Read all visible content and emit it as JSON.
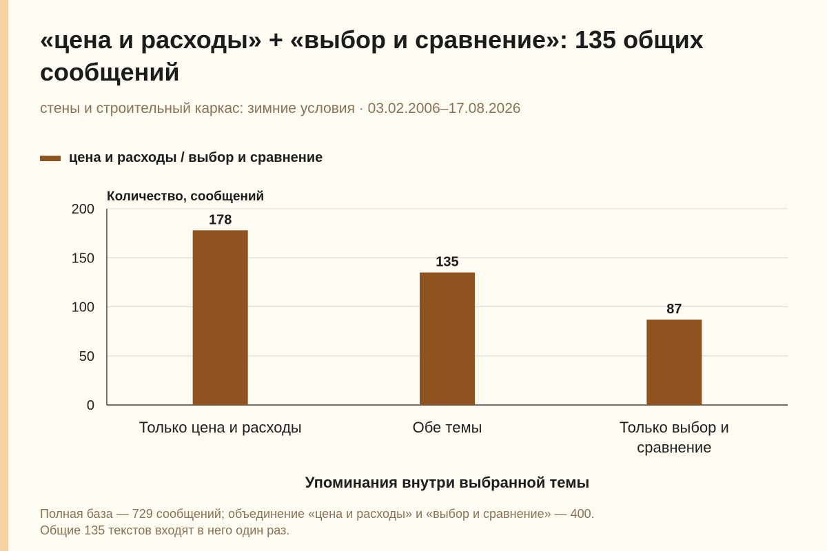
{
  "title": "«цена и расходы» + «выбор и сравнение»: 135 общих сообщений",
  "subtitle": "стены и строительный каркас: зимние условия · 03.02.2006–17.08.2026",
  "legend": {
    "label": "цена и расходы / выбор и сравнение",
    "color": "#8f5320"
  },
  "chart_data": {
    "type": "bar",
    "ylabel": "Количество, сообщений",
    "xlabel": "Упоминания внутри выбранной темы",
    "categories": [
      [
        "Только цена и расходы"
      ],
      [
        "Обе темы"
      ],
      [
        "Только выбор и",
        "сравнение"
      ]
    ],
    "values": [
      178,
      135,
      87
    ],
    "ylim": [
      0,
      200
    ],
    "yticks": [
      0,
      50,
      100,
      150,
      200
    ],
    "grid": true,
    "bar_color": "#8f5320"
  },
  "footnote": {
    "line1": "Полная база — 729 сообщений; объединение «цена и расходы» и «выбор и сравнение» — 400.",
    "line2": "Общие 135 текстов входят в него один раз."
  }
}
